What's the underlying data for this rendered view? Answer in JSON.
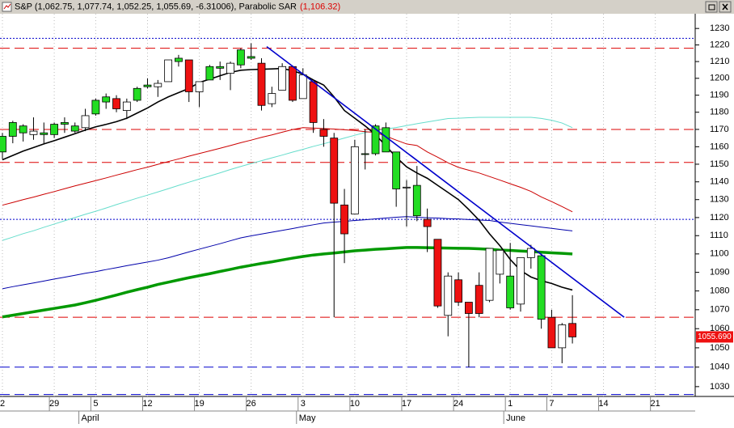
{
  "chart_data": {
    "type": "candlestick",
    "title": "S&P (1,062.75, 1,077.74, 1,052.25, 1,055.69, -6.31006)",
    "indicator": "Parabolic SAR",
    "indicator_value": "(1,106.32)",
    "log_scale": true,
    "ylim": [
      1025,
      1239
    ],
    "yticks": [
      1030,
      1040,
      1050,
      1060,
      1070,
      1080,
      1090,
      1100,
      1110,
      1120,
      1130,
      1140,
      1150,
      1160,
      1170,
      1180,
      1190,
      1200,
      1210,
      1220,
      1230
    ],
    "categories": [
      "2",
      null,
      null,
      null,
      null,
      "29",
      null,
      null,
      null,
      "5",
      null,
      null,
      null,
      null,
      "12",
      null,
      null,
      null,
      null,
      "19",
      null,
      null,
      null,
      null,
      "26",
      null,
      null,
      null,
      null,
      "3",
      null,
      null,
      null,
      null,
      "10",
      null,
      null,
      null,
      null,
      "17",
      null,
      null,
      null,
      null,
      "24",
      null,
      null,
      null,
      null,
      "1",
      null,
      null,
      null,
      "7",
      null,
      null,
      null,
      null,
      "14",
      null,
      null,
      null,
      null,
      "21",
      null,
      null,
      null,
      null
    ],
    "months": [
      null,
      null,
      null,
      null,
      null,
      null,
      null,
      null,
      "April",
      null,
      null,
      null,
      null,
      null,
      null,
      null,
      null,
      null,
      null,
      null,
      null,
      null,
      null,
      null,
      null,
      null,
      null,
      null,
      null,
      "May",
      null,
      null,
      null,
      null,
      null,
      null,
      null,
      null,
      null,
      null,
      null,
      null,
      null,
      null,
      null,
      null,
      null,
      null,
      null,
      "June",
      null,
      null,
      null,
      null,
      null,
      null,
      null,
      null,
      null,
      null,
      null,
      null,
      null,
      null,
      null,
      null,
      null,
      null
    ],
    "open": [
      1157,
      1166,
      1172,
      1167,
      1168,
      1167,
      1174,
      1172,
      1171,
      1179,
      1186,
      1188,
      1181,
      1187,
      1195,
      1195,
      1198,
      1210,
      1211,
      1192,
      1199,
      1207,
      1203,
      1208,
      1213,
      1209,
      1185,
      1193,
      1207,
      1188,
      1198,
      1170,
      1165,
      1127,
      1122,
      1156,
      1156,
      1171,
      1157,
      1137,
      1138,
      1119,
      1108,
      1067,
      1086,
      1074,
      1083,
      1075,
      1102,
      1088,
      1073,
      1098,
      1099,
      1066,
      1050,
      1062.75,
      null,
      null,
      null,
      null,
      null,
      null,
      null,
      null,
      null,
      null,
      null,
      null
    ],
    "high": [
      1168,
      1175,
      1173,
      1177,
      1174,
      1174,
      1177,
      1174,
      1182,
      1188,
      1191,
      1190,
      1188,
      1195,
      1200,
      1199,
      1211,
      1214,
      1211,
      1198,
      1208,
      1210,
      1210,
      1218,
      1221,
      1212,
      1195,
      1209,
      1207,
      1206,
      1198,
      1176,
      1168,
      1136,
      1164,
      1170,
      1173,
      1174,
      1157,
      1141,
      1149,
      1125,
      1108,
      1090,
      1090,
      1074,
      1090,
      1103,
      1102,
      1106,
      1098,
      1105,
      1100,
      1070,
      1063,
      1077.74,
      null,
      null,
      null,
      null,
      null,
      null,
      null,
      null,
      null,
      null,
      null,
      null
    ],
    "low": [
      1153,
      1162,
      1163,
      1164,
      1162,
      1165,
      1168,
      1168,
      1169,
      1178,
      1182,
      1180,
      1176,
      1186,
      1194,
      1189,
      1198,
      1207,
      1186,
      1183,
      1199,
      1199,
      1193,
      1206,
      1211,
      1181,
      1183,
      1193,
      1186,
      1188,
      1168,
      1160,
      1066,
      1095,
      1122,
      1147,
      1155,
      1157,
      1126,
      1115,
      1118,
      1101,
      1071,
      1056,
      1072,
      1040,
      1066,
      1074,
      1084,
      1070,
      1069,
      1092,
      1060,
      1050,
      1042,
      1052.25,
      null,
      null,
      null,
      null,
      null,
      null,
      null,
      null,
      null,
      null,
      null,
      null
    ],
    "close": [
      1166,
      1174,
      1168,
      1169,
      1167,
      1173,
      1173,
      1169,
      1178,
      1187,
      1189,
      1182,
      1186,
      1194,
      1196,
      1197,
      1211,
      1212,
      1192,
      1198,
      1207,
      1206,
      1209,
      1217,
      1212,
      1184,
      1191,
      1207,
      1187,
      1202,
      1174,
      1166,
      1128,
      1111,
      1160,
      1156,
      1172,
      1157,
      1136,
      1137,
      1121,
      1115,
      1072,
      1088,
      1074,
      1068,
      1068,
      1103,
      1089,
      1071,
      1098,
      1103,
      1065,
      1050,
      1062,
      1055.69,
      null,
      null,
      null,
      null,
      null,
      null,
      null,
      null,
      null,
      null,
      null,
      null
    ],
    "colors": [
      "#22dd22",
      "#22dd22",
      "#22dd22",
      "#ffffff",
      "#22dd22",
      "#22dd22",
      "#22dd22",
      "#22dd22",
      "#ffffff",
      "#22dd22",
      "#22dd22",
      "#ee1111",
      "#ffffff",
      "#22dd22",
      "#22dd22",
      "#ffffff",
      "#ffffff",
      "#22dd22",
      "#ee1111",
      "#ffffff",
      "#22dd22",
      "#22dd22",
      "#ffffff",
      "#22dd22",
      "#22dd22",
      "#ee1111",
      "#ffffff",
      "#ffffff",
      "#ee1111",
      "#ffffff",
      "#ee1111",
      "#ee1111",
      "#ee1111",
      "#ee1111",
      "#ffffff",
      "#22dd22",
      "#22dd22",
      "#22dd22",
      "#22dd22",
      "#ffffff",
      "#22dd22",
      "#ee1111",
      "#ee1111",
      "#ffffff",
      "#ee1111",
      "#ee1111",
      "#ee1111",
      "#ffffff",
      "#ffffff",
      "#22dd22",
      "#ffffff",
      "#ffffff",
      "#22dd22",
      "#ee1111",
      "#ffffff",
      "#ee1111",
      null,
      null,
      null,
      null,
      null,
      null,
      null,
      null,
      null,
      null,
      null,
      null
    ],
    "series": [
      {
        "color": "#66ddcc",
        "width": 1,
        "values": [
          1107.4,
          1109.2,
          1111.1,
          1112.7,
          1114.6,
          1116.4,
          1118.2,
          1120,
          1121.8,
          1123.5,
          1125.3,
          1127.2,
          1129,
          1130.8,
          1132.5,
          1134.3,
          1136.1,
          1138,
          1139.8,
          1141.6,
          1143.3,
          1145.1,
          1147,
          1148.7,
          1150.4,
          1152,
          1153.6,
          1155.2,
          1156.9,
          1158.5,
          1160.2,
          1161.7,
          1163.3,
          1165,
          1166.6,
          1168.2,
          1169.2,
          1170.2,
          1171.1,
          1172.2,
          1173.3,
          1174.3,
          1175.3,
          1176.3,
          1176.5,
          1176.8,
          1177,
          1177,
          1177,
          1177,
          1177,
          1177,
          1176.4,
          1175.3,
          1173.7,
          1171,
          null,
          null,
          null,
          null,
          null,
          null,
          null,
          null,
          null,
          null,
          null,
          null
        ]
      },
      {
        "color": "#cc0000",
        "width": 1,
        "values": [
          1126.9,
          1128.4,
          1130,
          1131.4,
          1133,
          1134.5,
          1136.1,
          1137.7,
          1139.2,
          1140.7,
          1142.2,
          1143.8,
          1145.3,
          1146.9,
          1148.3,
          1149.9,
          1151.5,
          1153,
          1154.6,
          1156.1,
          1157.6,
          1159.1,
          1160.7,
          1162.3,
          1163.8,
          1165.4,
          1166.8,
          1168.4,
          1169.9,
          1171,
          1170.8,
          1170.5,
          1170.2,
          1169.8,
          1169.4,
          1168.7,
          1168.2,
          1166.1,
          1163.8,
          1161.6,
          1160.7,
          1157,
          1154,
          1150.8,
          1148.2,
          1146.6,
          1145,
          1143,
          1141,
          1138.9,
          1136.9,
          1134.6,
          1131.5,
          1128.9,
          1126.1,
          1123.2,
          null,
          null,
          null,
          null,
          null,
          null,
          null,
          null,
          null,
          null,
          null,
          null
        ]
      },
      {
        "color": "#0000aa",
        "width": 1,
        "values": [
          1081.2,
          1082.3,
          1083.3,
          1084.3,
          1085.3,
          1086.4,
          1087.4,
          1088.4,
          1089.5,
          1090.4,
          1091.5,
          1092.5,
          1093.6,
          1094.6,
          1095.6,
          1096.6,
          1097.9,
          1099.5,
          1101.1,
          1102.6,
          1104.1,
          1105.6,
          1107.2,
          1108.8,
          1109.9,
          1110.9,
          1111.9,
          1112.9,
          1113.9,
          1115,
          1116,
          1117,
          1117.5,
          1117.9,
          1118.4,
          1118.8,
          1119.3,
          1119.7,
          1120.2,
          1120.5,
          1120.2,
          1119.9,
          1119.7,
          1119.4,
          1119.2,
          1118.9,
          1118.6,
          1118.4,
          1117.5,
          1116.8,
          1116.1,
          1115.4,
          1114.7,
          1114,
          1113.3,
          1112.6,
          null,
          null,
          null,
          null,
          null,
          null,
          null,
          null,
          null,
          null,
          null,
          null
        ]
      },
      {
        "color": "#009900",
        "width": 3.5,
        "values": [
          1066.2,
          1067.1,
          1068,
          1068.9,
          1069.8,
          1070.7,
          1071.6,
          1072.5,
          1073.7,
          1075,
          1076.4,
          1077.8,
          1079.3,
          1080.7,
          1082,
          1083.5,
          1084.7,
          1085.9,
          1087.1,
          1088.2,
          1089.3,
          1090.5,
          1091.6,
          1092.8,
          1093.8,
          1094.8,
          1095.7,
          1096.7,
          1097.7,
          1098.6,
          1099.4,
          1100,
          1100.5,
          1101.1,
          1101.7,
          1102.1,
          1102.5,
          1102.8,
          1103.2,
          1103.5,
          1103.5,
          1103.4,
          1103.3,
          1103.2,
          1103.1,
          1103,
          1102.8,
          1102.5,
          1102.1,
          1101.9,
          1101.6,
          1101.3,
          1100.9,
          1100.6,
          1100.3,
          1100,
          null,
          null,
          null,
          null,
          null,
          null,
          null,
          null,
          null,
          null,
          null,
          null
        ]
      },
      {
        "color": "#000000",
        "width": 1.6,
        "values": [
          1152.5,
          1155,
          1157.5,
          1159.5,
          1161.6,
          1163.5,
          1165.5,
          1167.5,
          1169.6,
          1171.5,
          1172.9,
          1174.5,
          1176.5,
          1179.5,
          1182.5,
          1186,
          1189,
          1191.5,
          1194,
          1197.5,
          1199.5,
          1201.5,
          1203.5,
          1204.8,
          1205.2,
          1205.4,
          1205.6,
          1205.9,
          1204.5,
          1202.5,
          1199,
          1196,
          1189,
          1181,
          1176.5,
          1172,
          1167,
          1160.5,
          1154,
          1148.5,
          1145,
          1142,
          1138,
          1134,
          1130,
          1124.5,
          1118.5,
          1111,
          1104.5,
          1097,
          1091,
          1087.5,
          1085.5,
          1084,
          1082,
          1080.5,
          null,
          null,
          null,
          null,
          null,
          null,
          null,
          null,
          null,
          null,
          null,
          null
        ]
      }
    ],
    "trendline": {
      "color": "#0000cc",
      "x": [
        25.5,
        60
      ],
      "values": [
        1219,
        1066
      ]
    },
    "hlines": [
      {
        "value": 1224,
        "color": "#0000cc",
        "dash": "2 2"
      },
      {
        "value": 1218,
        "color": "#dd0000",
        "dash": "12 6"
      },
      {
        "value": 1170,
        "color": "#dd0000",
        "dash": "12 6"
      },
      {
        "value": 1151,
        "color": "#dd0000",
        "dash": "12 6"
      },
      {
        "value": 1119,
        "color": "#0000cc",
        "dash": "2 2"
      },
      {
        "value": 1066,
        "color": "#dd0000",
        "dash": "12 6"
      },
      {
        "value": 1040,
        "color": "#0000cc",
        "dash": "12 6"
      },
      {
        "value": 1026,
        "color": "#0000cc",
        "dash": "12 6"
      }
    ],
    "last_price": {
      "value": 1055.69,
      "label": "1055.690",
      "color": "#ee1111"
    }
  }
}
